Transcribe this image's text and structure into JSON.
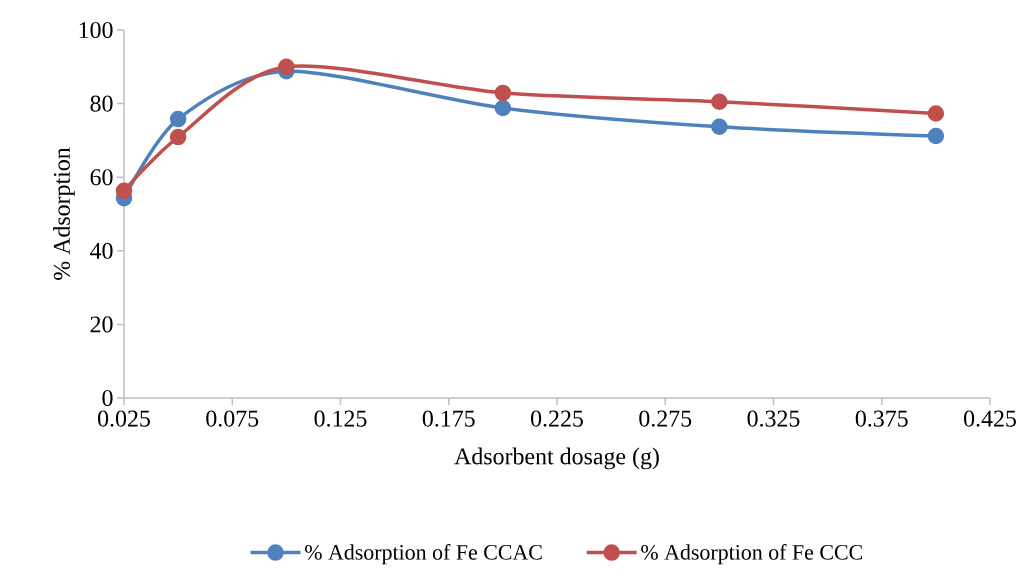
{
  "chart_data": {
    "type": "line",
    "xlabel": "Adsorbent dosage (g)",
    "ylabel": "% Adsorption",
    "x": [
      0.025,
      0.05,
      0.1,
      0.2,
      0.3,
      0.4
    ],
    "series": [
      {
        "name": "% Adsorption of Fe CCAC",
        "color": "#4f81bd",
        "values": [
          54.3,
          75.8,
          88.8,
          78.8,
          73.7,
          71.2
        ]
      },
      {
        "name": "% Adsorption of Fe CCC",
        "color": "#c0504d",
        "values": [
          56.3,
          70.9,
          90.0,
          82.9,
          80.5,
          77.3
        ]
      }
    ],
    "xlim": [
      0.025,
      0.425
    ],
    "xticks": [
      0.025,
      0.075,
      0.125,
      0.175,
      0.225,
      0.275,
      0.325,
      0.375,
      0.425
    ],
    "ylim": [
      0,
      100
    ],
    "yticks": [
      0,
      20,
      40,
      60,
      80,
      100
    ],
    "grid": false,
    "legend": "bottom",
    "marker": "circle",
    "line_style": "solid"
  }
}
